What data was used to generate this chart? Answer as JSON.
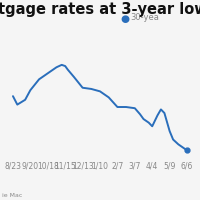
{
  "title": "tgage rates at 3-year low",
  "legend_label": "30-yea",
  "x_labels": [
    "8/23",
    "9/20",
    "10/18",
    "11/15",
    "12/13",
    "1/10",
    "2/7",
    "3/7",
    "4/4",
    "5/9",
    "6/6"
  ],
  "line_color": "#2a6ebb",
  "dot_color": "#2a6ebb",
  "bg_color": "#f5f5f5",
  "grid_color": "#d8d8d8",
  "text_color": "#888888",
  "title_color": "#111111",
  "source_text": "ie Mac",
  "title_fontsize": 10.5,
  "tick_fontsize": 5.5,
  "legend_fontsize": 6.0,
  "x_data": [
    0,
    0.25,
    0.7,
    1.0,
    1.5,
    2.0,
    2.2,
    2.5,
    2.8,
    3.0,
    3.15,
    3.5,
    4.0,
    4.5,
    5.0,
    5.2,
    5.5,
    6.0,
    6.5,
    7.0,
    7.3,
    7.5,
    7.8,
    8.0,
    8.3,
    8.5,
    8.7,
    9.0,
    9.2,
    9.5,
    9.8,
    10.0
  ],
  "y_data": [
    3.58,
    3.51,
    3.55,
    3.63,
    3.72,
    3.77,
    3.79,
    3.82,
    3.84,
    3.83,
    3.8,
    3.74,
    3.65,
    3.64,
    3.62,
    3.6,
    3.57,
    3.49,
    3.49,
    3.48,
    3.43,
    3.39,
    3.36,
    3.33,
    3.42,
    3.47,
    3.44,
    3.29,
    3.22,
    3.18,
    3.15,
    3.13
  ],
  "ylim": [
    3.05,
    3.98
  ],
  "xlim": [
    -0.4,
    10.4
  ]
}
